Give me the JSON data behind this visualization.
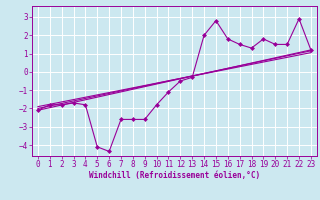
{
  "xlabel": "Windchill (Refroidissement éolien,°C)",
  "background_color": "#cce8f0",
  "grid_color": "#ffffff",
  "line_color": "#990099",
  "xlim": [
    -0.5,
    23.5
  ],
  "ylim": [
    -4.6,
    3.6
  ],
  "yticks": [
    -4,
    -3,
    -2,
    -1,
    0,
    1,
    2,
    3
  ],
  "xticks": [
    0,
    1,
    2,
    3,
    4,
    5,
    6,
    7,
    8,
    9,
    10,
    11,
    12,
    13,
    14,
    15,
    16,
    17,
    18,
    19,
    20,
    21,
    22,
    23
  ],
  "main_series_x": [
    0,
    1,
    2,
    3,
    4,
    5,
    6,
    7,
    8,
    9,
    10,
    11,
    12,
    13,
    14,
    15,
    16,
    17,
    18,
    19,
    20,
    21,
    22,
    23
  ],
  "main_series_y": [
    -2.1,
    -1.8,
    -1.8,
    -1.7,
    -1.8,
    -4.1,
    -4.35,
    -2.6,
    -2.6,
    -2.6,
    -1.8,
    -1.1,
    -0.5,
    -0.3,
    2.0,
    2.8,
    1.8,
    1.5,
    1.3,
    1.8,
    1.5,
    1.5,
    2.9,
    1.2
  ],
  "reg_lines": [
    {
      "x0": 0,
      "y0": -2.1,
      "x1": 23,
      "y1": 1.2
    },
    {
      "x0": 0,
      "y0": -2.0,
      "x1": 23,
      "y1": 1.15
    },
    {
      "x0": 0,
      "y0": -1.9,
      "x1": 23,
      "y1": 1.05
    }
  ],
  "xlabel_fontsize": 5.5,
  "tick_fontsize": 5.5,
  "lw": 0.8,
  "marker_size": 2.0
}
